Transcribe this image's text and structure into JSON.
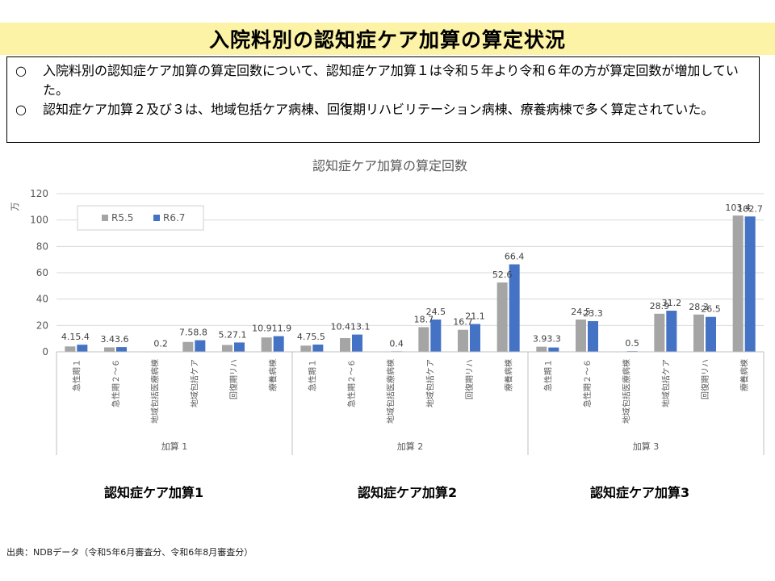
{
  "page": {
    "title": "入院料別の認知症ケア加算の算定状況",
    "bullets": [
      {
        "mark": "○",
        "text": "入院料別の認知症ケア加算の算定回数について、認知症ケア加算１は令和５年より令和６年の方が算定回数が増加していた。"
      },
      {
        "mark": "○",
        "text": "認知症ケア加算２及び３は、地域包括ケア病棟、回復期リハビリテーション病棟、療養病棟で多く算定されていた。"
      }
    ],
    "captions": [
      "認知症ケア加算1",
      "認知症ケア加算2",
      "認知症ケア加算3"
    ],
    "source": "出典：NDBデータ（令和5年6月審査分、令和6年8月審査分）"
  },
  "chart_data": {
    "type": "bar",
    "title": "認知症ケア加算の算定回数",
    "ylabel": "万",
    "ylim": [
      0,
      120
    ],
    "yticks": [
      0,
      20,
      40,
      60,
      80,
      100,
      120
    ],
    "grid": true,
    "legend": "top-left",
    "groups": [
      "加算 1",
      "加算 2",
      "加算 3"
    ],
    "categories": [
      "急性期１",
      "急性期２～６",
      "地域包括医療病棟",
      "地域包括ケア",
      "回復期リハ",
      "療養病棟",
      "急性期１",
      "急性期２～６",
      "地域包括医療病棟",
      "地域包括ケア",
      "回復期リハ",
      "療養病棟",
      "急性期１",
      "急性期２～６",
      "地域包括医療病棟",
      "地域包括ケア",
      "回復期リハ",
      "療養病棟"
    ],
    "series": [
      {
        "name": "R5.5",
        "color": "#a5a5a5",
        "values": [
          4.1,
          3.4,
          null,
          7.5,
          5.2,
          10.9,
          4.7,
          10.4,
          null,
          18.7,
          16.7,
          52.6,
          3.9,
          24.5,
          null,
          28.9,
          28.3,
          103.4
        ],
        "labels": [
          "4.1",
          "3.4",
          "",
          "7.5",
          "5.2",
          "10.9",
          "4.7",
          "10.4",
          "",
          "18.7",
          "16.7",
          "52.6",
          "3.9",
          "24.5",
          "",
          "28.9",
          "28.3",
          "103.4"
        ]
      },
      {
        "name": "R6.7",
        "color": "#4472c4",
        "values": [
          5.4,
          3.6,
          0.2,
          8.8,
          7.1,
          11.9,
          5.5,
          13.1,
          0.4,
          24.5,
          21.1,
          66.4,
          3.3,
          23.3,
          0.5,
          31.2,
          26.5,
          102.7
        ],
        "labels": [
          "5.4",
          "3.6",
          "0.2",
          "8.8",
          "7.1",
          "11.9",
          "5.5",
          "13.1",
          "0.4",
          "24.5",
          "21.1",
          "66.4",
          "3.3",
          "23.3",
          "0.5",
          "31.2",
          "26.5",
          "102.7"
        ]
      }
    ]
  }
}
